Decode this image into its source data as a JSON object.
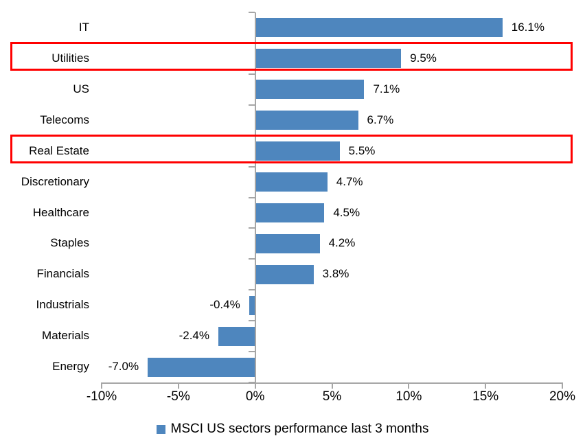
{
  "chart_data": {
    "type": "bar",
    "orientation": "horizontal",
    "categories": [
      "IT",
      "Utilities",
      "US",
      "Telecoms",
      "Real Estate",
      "Discretionary",
      "Healthcare",
      "Staples",
      "Financials",
      "Industrials",
      "Materials",
      "Energy"
    ],
    "values": [
      16.1,
      9.5,
      7.1,
      6.7,
      5.5,
      4.7,
      4.5,
      4.2,
      3.8,
      -0.4,
      -2.4,
      -7.0
    ],
    "labels": [
      "16.1%",
      "9.5%",
      "7.1%",
      "6.7%",
      "5.5%",
      "4.7%",
      "4.5%",
      "4.2%",
      "3.8%",
      "-0.4%",
      "-2.4%",
      "-7.0%"
    ],
    "x_ticks": [
      "-10%",
      "-5%",
      "0%",
      "5%",
      "10%",
      "15%",
      "20%"
    ],
    "x_tick_values": [
      -10,
      -5,
      0,
      5,
      10,
      15,
      20
    ],
    "xlim": [
      -10,
      20
    ],
    "grid": false,
    "legend": "MSCI US sectors performance last 3 months",
    "legend_position": "bottom",
    "highlighted_categories": [
      "Utilities",
      "Real Estate"
    ],
    "colors": {
      "bar": "#4E86BE",
      "highlight_box": "#FF0000",
      "axis": "#A6A6A6",
      "text": "#000000",
      "background": "#FFFFFF"
    }
  }
}
